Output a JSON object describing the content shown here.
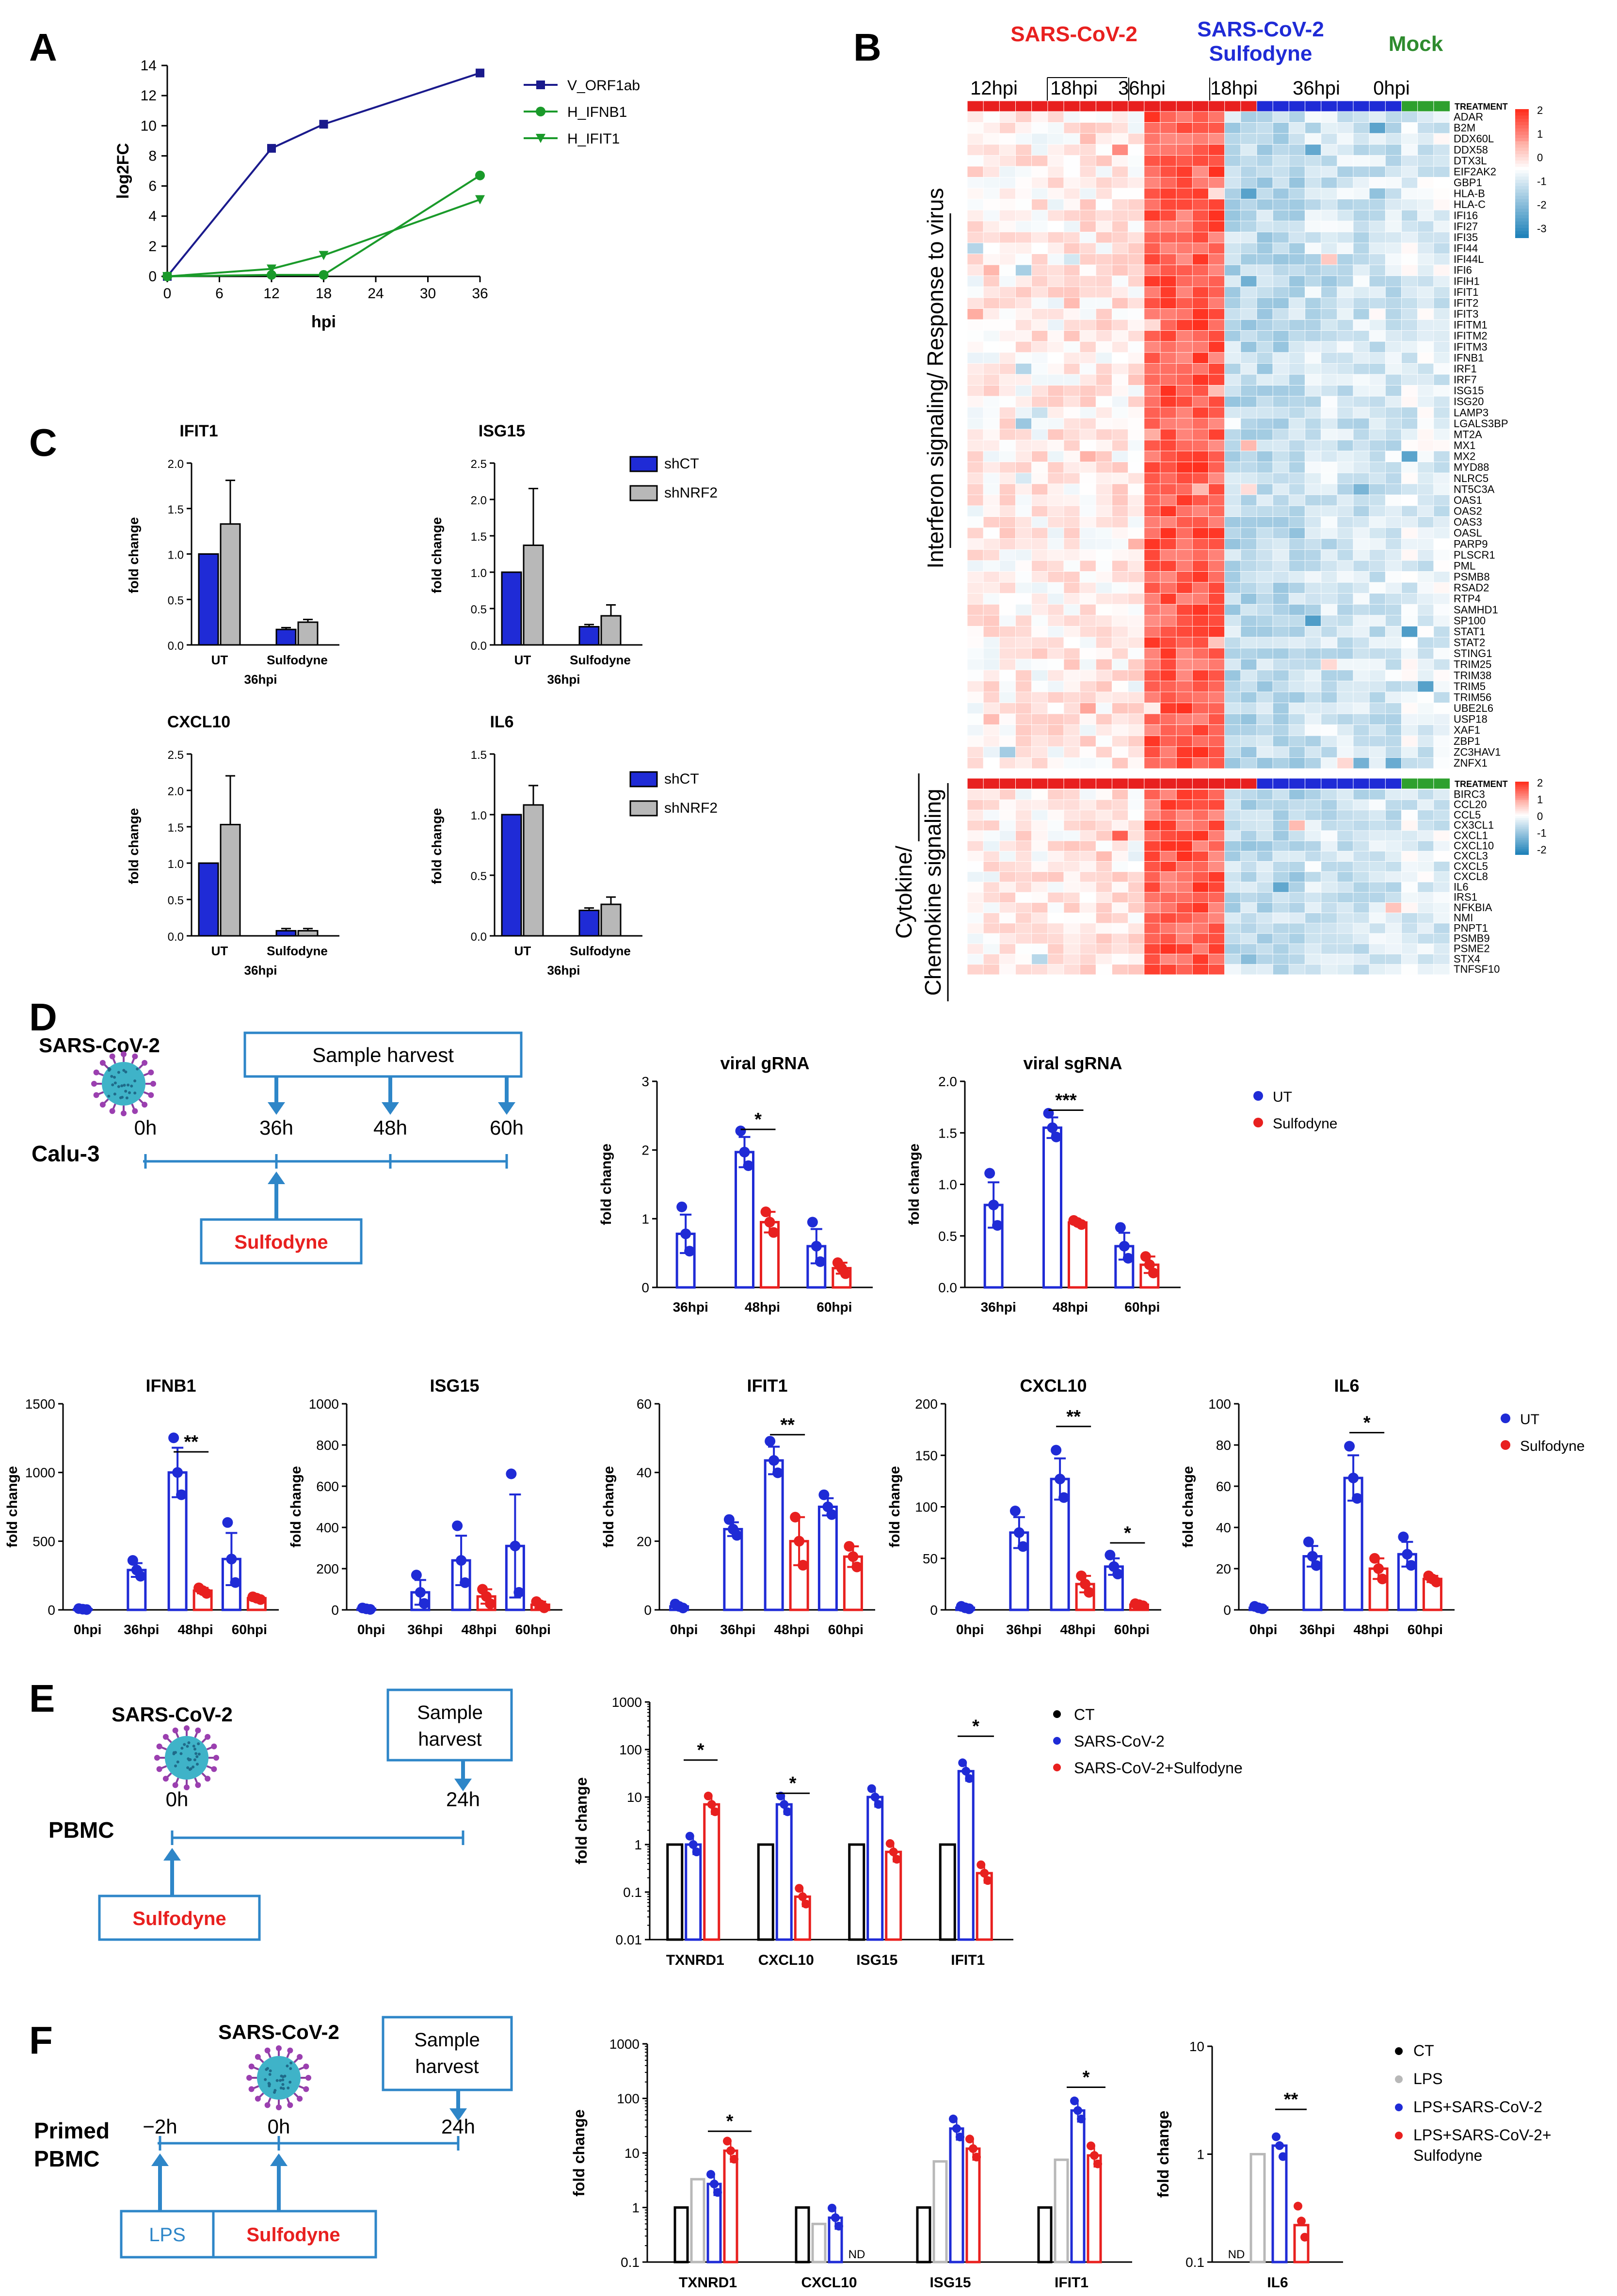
{
  "colors": {
    "blue": "#1f2bd6",
    "red": "#e8201f",
    "gray": "#b8b8b8",
    "navy": "#1a1a8c",
    "green": "#1a9a2a",
    "mock_green": "#2e8b2e",
    "box": "#2e86c8",
    "heat_red": "#d7301f",
    "heat_blue": "#2b83ba"
  },
  "panels": {
    "A": "A",
    "B": "B",
    "C": "C",
    "D": "D",
    "E": "E",
    "F": "F"
  },
  "A": {
    "chart_data": {
      "type": "line",
      "xlabel": "hpi",
      "ylabel": "log2FC",
      "x": [
        0,
        12,
        18,
        36
      ],
      "xticks": [
        0,
        6,
        12,
        18,
        24,
        30,
        36
      ],
      "yticks": [
        0,
        2,
        4,
        6,
        8,
        10,
        12,
        14
      ],
      "xlim": [
        0,
        36
      ],
      "ylim": [
        0,
        14
      ],
      "series": [
        {
          "name": "V_ORF1ab",
          "values": [
            0,
            8.5,
            10.1,
            13.5
          ]
        },
        {
          "name": "H_IFNB1",
          "values": [
            0,
            0.1,
            0.1,
            6.7
          ]
        },
        {
          "name": "H_IFIT1",
          "values": [
            0,
            0.5,
            1.4,
            5.1
          ]
        }
      ]
    }
  },
  "B": {
    "groups": [
      {
        "label": "SARS-CoV-2",
        "color": "#e8201f"
      },
      {
        "label": "SARS-CoV-2\nSulfodyne",
        "color": "#1f2bd6"
      },
      {
        "label": "Mock",
        "color": "#2e8b2e"
      }
    ],
    "timepoints": [
      "12hpi",
      "18hpi",
      "36hpi",
      "18hpi",
      "36hpi",
      "0hpi"
    ],
    "treatment_label": "TREATMENT",
    "scale_ticks": [
      "2",
      "1",
      "0",
      "-1",
      "-2",
      "-3"
    ],
    "scale_ticks2": [
      "2",
      "1",
      "0",
      "-1",
      "-2"
    ],
    "section1_label": "Interferon signaling/ Response to virus",
    "section2_label": "Cytokine/ Chemokine signaling",
    "genes1": [
      "ADAR",
      "B2M",
      "DDX60L",
      "DDX58",
      "DTX3L",
      "EIF2AK2",
      "GBP1",
      "HLA-B",
      "HLA-C",
      "IFI16",
      "IFI27",
      "IFI35",
      "IFI44",
      "IFI44L",
      "IFI6",
      "IFIH1",
      "IFIT1",
      "IFIT2",
      "IFIT3",
      "IFITM1",
      "IFITM2",
      "IFITM3",
      "IFNB1",
      "IRF1",
      "IRF7",
      "ISG15",
      "ISG20",
      "LAMP3",
      "LGALS3BP",
      "MT2A",
      "MX1",
      "MX2",
      "MYD88",
      "NLRC5",
      "NT5C3A",
      "OAS1",
      "OAS2",
      "OAS3",
      "OASL",
      "PARP9",
      "PLSCR1",
      "PML",
      "PSMB8",
      "RSAD2",
      "RTP4",
      "SAMHD1",
      "SP100",
      "STAT1",
      "STAT2",
      "STING1",
      "TRIM25",
      "TRIM38",
      "TRIM5",
      "TRIM56",
      "UBE2L6",
      "USP18",
      "XAF1",
      "ZBP1",
      "ZC3HAV1",
      "ZNFX1"
    ],
    "genes2": [
      "BIRC3",
      "CCL20",
      "CCL5",
      "CX3CL1",
      "CXCL1",
      "CXCL10",
      "CXCL3",
      "CXCL5",
      "CXCL8",
      "IL6",
      "IRS1",
      "NFKBIA",
      "NMI",
      "PNPT1",
      "PSMB9",
      "PSME2",
      "STX4",
      "TNFSF10"
    ]
  },
  "C": {
    "legend": [
      "shCT",
      "shNRF2"
    ],
    "ylabel": "fold change",
    "xgroup": "36hpi",
    "categories": [
      "UT",
      "Sulfodyne"
    ],
    "charts": [
      {
        "title": "IFIT1",
        "yticks": [
          "0.0",
          "0.5",
          "1.0",
          "1.5",
          "2.0"
        ],
        "ymax": 2.0,
        "shCT": [
          1.0,
          0.17
        ],
        "shCT_err": [
          0,
          0.02
        ],
        "shNRF2": [
          1.33,
          0.25
        ],
        "shNRF2_err": [
          0.48,
          0.03
        ]
      },
      {
        "title": "ISG15",
        "yticks": [
          "0.0",
          "0.5",
          "1.0",
          "1.5",
          "2.0",
          "2.5"
        ],
        "ymax": 2.5,
        "shCT": [
          1.0,
          0.25
        ],
        "shCT_err": [
          0,
          0.03
        ],
        "shNRF2": [
          1.37,
          0.4
        ],
        "shNRF2_err": [
          0.78,
          0.15
        ]
      },
      {
        "title": "CXCL10",
        "yticks": [
          "0.0",
          "0.5",
          "1.0",
          "1.5",
          "2.0",
          "2.5"
        ],
        "ymax": 2.5,
        "shCT": [
          1.0,
          0.07
        ],
        "shCT_err": [
          0,
          0.03
        ],
        "shNRF2": [
          1.53,
          0.07
        ],
        "shNRF2_err": [
          0.67,
          0.03
        ]
      },
      {
        "title": "IL6",
        "yticks": [
          "0.0",
          "0.5",
          "1.0",
          "1.5"
        ],
        "ymax": 1.5,
        "shCT": [
          1.0,
          0.21
        ],
        "shCT_err": [
          0,
          0.02
        ],
        "shNRF2": [
          1.08,
          0.26
        ],
        "shNRF2_err": [
          0.16,
          0.06
        ]
      }
    ]
  },
  "D": {
    "virus": "SARS-CoV-2",
    "harvest": "Sample harvest",
    "cell": "Calu-3",
    "drug": "Sulfodyne",
    "times": [
      "0h",
      "36h",
      "48h",
      "60h"
    ],
    "legend": [
      "UT",
      "Sulfodyne"
    ],
    "ylabel": "fold change",
    "sig": [
      "*",
      "***",
      "**",
      "**",
      "**",
      "*",
      "*"
    ],
    "top": [
      {
        "title": "viral gRNA",
        "yticks": [
          "0",
          "1",
          "2",
          "3"
        ],
        "ymax": 3,
        "categories": [
          "36hpi",
          "48hpi",
          "60hpi"
        ],
        "UT": [
          0.78,
          1.97,
          0.6
        ],
        "UT_err": [
          0.28,
          0.22,
          0.25
        ],
        "SF": [
          null,
          0.95,
          0.28
        ],
        "SF_err": [
          null,
          0.15,
          0.08
        ]
      },
      {
        "title": "viral sgRNA",
        "yticks": [
          "0.0",
          "0.5",
          "1.0",
          "1.5",
          "2.0"
        ],
        "ymax": 2.0,
        "categories": [
          "36hpi",
          "48hpi",
          "60hpi"
        ],
        "UT": [
          0.8,
          1.55,
          0.4
        ],
        "UT_err": [
          0.22,
          0.1,
          0.13
        ],
        "SF": [
          null,
          0.63,
          0.22
        ],
        "SF_err": [
          null,
          0.02,
          0.08
        ]
      }
    ],
    "bottom": [
      {
        "title": "IFNB1",
        "yticks": [
          "0",
          "500",
          "1000",
          "1500"
        ],
        "ymax": 1500,
        "categories": [
          "0hpi",
          "36hpi",
          "48hpi",
          "60hpi"
        ],
        "UT": [
          5,
          290,
          1000,
          370
        ],
        "UT_err": [
          3,
          50,
          180,
          190
        ],
        "SF": [
          null,
          null,
          140,
          85
        ],
        "SF_err": [
          null,
          null,
          20,
          10
        ]
      },
      {
        "title": "ISG15",
        "yticks": [
          "0",
          "200",
          "400",
          "600",
          "800",
          "1000"
        ],
        "ymax": 1000,
        "categories": [
          "0hpi",
          "36hpi",
          "48hpi",
          "60hpi"
        ],
        "UT": [
          5,
          85,
          240,
          310
        ],
        "UT_err": [
          3,
          60,
          120,
          250
        ],
        "SF": [
          null,
          null,
          65,
          25
        ],
        "SF_err": [
          null,
          null,
          35,
          15
        ]
      },
      {
        "title": "IFIT1",
        "yticks": [
          "0",
          "20",
          "40",
          "60"
        ],
        "ymax": 60,
        "categories": [
          "0hpi",
          "36hpi",
          "48hpi",
          "60hpi"
        ],
        "UT": [
          1,
          23.5,
          43.5,
          30
        ],
        "UT_err": [
          0.5,
          2,
          4,
          2.5
        ],
        "SF": [
          null,
          null,
          20,
          15.5
        ],
        "SF_err": [
          null,
          null,
          7,
          3
        ]
      },
      {
        "title": "CXCL10",
        "yticks": [
          "0",
          "50",
          "100",
          "150",
          "200"
        ],
        "ymax": 200,
        "categories": [
          "0hpi",
          "36hpi",
          "48hpi",
          "60hpi"
        ],
        "UT": [
          2,
          75,
          127,
          42
        ],
        "UT_err": [
          1,
          15,
          20,
          8
        ],
        "SF": [
          null,
          null,
          25,
          5
        ],
        "SF_err": [
          null,
          null,
          8,
          1
        ]
      },
      {
        "title": "IL6",
        "yticks": [
          "0",
          "20",
          "40",
          "60",
          "80",
          "100"
        ],
        "ymax": 100,
        "categories": [
          "0hpi",
          "36hpi",
          "48hpi",
          "60hpi"
        ],
        "UT": [
          1,
          26,
          64,
          27
        ],
        "UT_err": [
          0.5,
          5,
          11,
          6
        ],
        "SF": [
          null,
          null,
          20,
          15
        ],
        "SF_err": [
          null,
          null,
          5,
          1.5
        ]
      }
    ]
  },
  "E": {
    "virus": "SARS-CoV-2",
    "harvest": "Sample\nharvest",
    "cell": "PBMC",
    "drug": "Sulfodyne",
    "times": [
      "0h",
      "24h"
    ],
    "legend": [
      "CT",
      "SARS-CoV-2",
      "SARS-CoV-2+Sulfodyne"
    ],
    "ylabel": "fold change",
    "yticks": [
      "0.01",
      "0.1",
      "1",
      "10",
      "100",
      "1000"
    ],
    "categories": [
      "TXNRD1",
      "CXCL10",
      "ISG15",
      "IFIT1"
    ],
    "CT": [
      1,
      1,
      1,
      1
    ],
    "V": [
      1,
      7,
      10,
      35
    ],
    "VS": [
      7,
      0.08,
      0.7,
      0.25
    ],
    "sig": [
      "*",
      "*",
      "*"
    ]
  },
  "F": {
    "virus": "SARS-CoV-2",
    "harvest": "Sample\nharvest",
    "cell": "Primed\nPBMC",
    "drug": "Sulfodyne",
    "lps": "LPS",
    "times": [
      "−2h",
      "0h",
      "24h"
    ],
    "legend": [
      "CT",
      "LPS",
      "LPS+SARS-CoV-2",
      "LPS+SARS-CoV-2+\nSulfodyne"
    ],
    "ylabel": "fold change",
    "yticks": [
      "0.1",
      "1",
      "10",
      "100",
      "1000"
    ],
    "categories": [
      "TXNRD1",
      "CXCL10",
      "ISG15",
      "IFIT1"
    ],
    "CT": [
      1,
      1,
      1,
      1
    ],
    "LPS": [
      3.3,
      0.5,
      7,
      7.5
    ],
    "LV": [
      2.7,
      0.65,
      28,
      60
    ],
    "LVS": [
      11,
      null,
      12,
      9
    ],
    "nd": "ND",
    "sig": [
      "*",
      "*",
      "**"
    ],
    "il6": {
      "title": "IL6",
      "yticks": [
        "0.1",
        "1",
        "10"
      ],
      "LPS": 1,
      "LV": 1.2,
      "LVS": 0.22
    }
  }
}
